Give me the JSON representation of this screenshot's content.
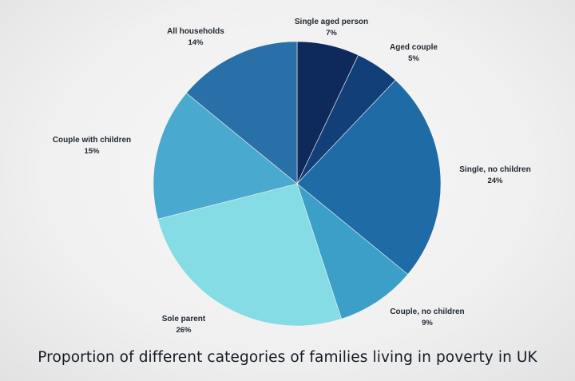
{
  "chart_data": {
    "type": "pie",
    "title": "Proportion of different categories of families living in poverty in UK",
    "slices": [
      {
        "label": "Single aged person",
        "value": 7,
        "value_label": "7%",
        "color": "#0e2a5c"
      },
      {
        "label": "Aged couple",
        "value": 5,
        "value_label": "5%",
        "color": "#123f78"
      },
      {
        "label": "Single, no children",
        "value": 24,
        "value_label": "24%",
        "color": "#1f6ba5"
      },
      {
        "label": "Couple, no children",
        "value": 9,
        "value_label": "9%",
        "color": "#3c9fc7"
      },
      {
        "label": "Sole parent",
        "value": 26,
        "value_label": "26%",
        "color": "#86dce5"
      },
      {
        "label": "Couple with children",
        "value": 15,
        "value_label": "15%",
        "color": "#4aa9cf"
      },
      {
        "label": "All households",
        "value": 14,
        "value_label": "14%",
        "color": "#2a70a8"
      }
    ]
  }
}
